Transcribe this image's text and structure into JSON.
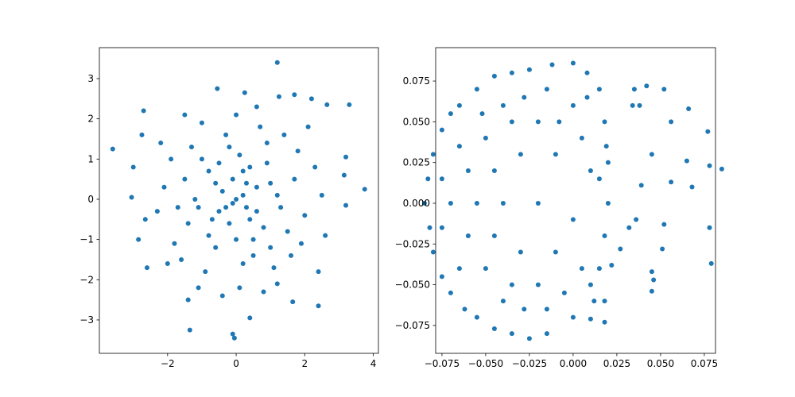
{
  "chart_data": [
    {
      "type": "scatter",
      "color": "#1f77b4",
      "x": [
        -3.6,
        3.75,
        1.2,
        -0.05,
        -1.35,
        -0.1,
        3.3,
        2.65,
        2.4,
        3.2,
        3.15,
        3.2,
        -2.7,
        -3.0,
        -3.05,
        -2.85,
        -2.6,
        0.4,
        1.65,
        2.2,
        1.25,
        -0.55,
        0.25,
        -2.75,
        -2.65,
        2.5,
        2.4,
        -1.4,
        0.0,
        0.3,
        -0.4,
        0.6,
        -0.8,
        0.9,
        -0.2,
        0.1,
        -1.1,
        1.2,
        0.5,
        -0.6,
        1.5,
        -1.5,
        0.2,
        -0.3,
        1.8,
        -1.8,
        0.7,
        -1.0,
        1.1,
        -0.9,
        2.0,
        -2.1,
        0.0,
        0.1,
        1.4,
        -1.3,
        1.6,
        -1.6,
        0.4,
        -0.5,
        0.8,
        -0.7,
        1.0,
        -1.2,
        0.3,
        -0.1,
        0.6,
        -0.3,
        0.2,
        -0.6,
        1.3,
        -1.4,
        0.9,
        -0.2,
        0.5,
        -0.8,
        2.3,
        -2.3,
        1.9,
        -1.9,
        0.0,
        1.0,
        -1.0,
        1.7,
        -1.7,
        2.1,
        -2.0,
        0.6,
        -0.4,
        1.2,
        -1.1,
        0.8,
        -1.5,
        1.7,
        -2.2,
        2.6,
        0.2,
        -0.1,
        0.4,
        -0.5
      ],
      "values": [
        1.25,
        0.25,
        3.4,
        -3.45,
        -3.25,
        -3.35,
        2.35,
        2.35,
        -2.65,
        1.05,
        0.6,
        -0.15,
        2.2,
        0.8,
        0.05,
        -1.0,
        -1.7,
        -2.95,
        -2.55,
        2.5,
        2.55,
        2.75,
        2.65,
        1.6,
        -0.5,
        0.1,
        -1.8,
        -2.5,
        0.0,
        0.4,
        0.2,
        -0.3,
        0.7,
        0.9,
        -0.6,
        1.1,
        -0.2,
        0.1,
        -1.0,
        -1.2,
        -0.8,
        0.5,
        -1.6,
        1.6,
        1.2,
        -1.1,
        1.8,
        1.9,
        -1.7,
        -1.8,
        -0.4,
        0.3,
        2.1,
        -2.2,
        1.6,
        1.3,
        -1.4,
        -1.5,
        0.8,
        0.9,
        -0.7,
        -0.5,
        0.4,
        0.0,
        -0.2,
        0.5,
        0.3,
        -0.2,
        0.7,
        0.4,
        -0.2,
        -0.6,
        1.4,
        1.3,
        -1.4,
        -0.9,
        0.8,
        -0.3,
        -1.1,
        1.0,
        -1.0,
        -1.2,
        1.0,
        0.5,
        -0.2,
        1.8,
        -1.6,
        2.3,
        -2.4,
        -2.1,
        -2.2,
        -2.3,
        2.1,
        2.6,
        1.4,
        -0.9,
        0.1,
        -0.1,
        -0.5,
        -0.3
      ],
      "xlim": [
        -3.99,
        4.15
      ],
      "ylim": [
        -3.83,
        3.77
      ],
      "xticks": [
        {
          "value": -2,
          "label": "−2"
        },
        0,
        2,
        4
      ],
      "yticks": [
        {
          "value": -3,
          "label": "−3"
        },
        {
          "value": -2,
          "label": "−2"
        },
        {
          "value": -1,
          "label": "−1"
        },
        0,
        1,
        2,
        3
      ]
    },
    {
      "type": "scatter",
      "color": "#1f77b4",
      "x": [
        0.035,
        0.042,
        0.052,
        0.066,
        0.056,
        0.077,
        0.045,
        0.065,
        0.085,
        0.078,
        0.056,
        0.068,
        0.039,
        0.036,
        0.032,
        0.052,
        0.078,
        0.079,
        0.051,
        0.045,
        0.046,
        0.045,
        0.027,
        0.022,
        0.018,
        0.018,
        0.01,
        0.034,
        0.038,
        0.02,
        -0.085,
        -0.083,
        -0.082,
        -0.08,
        -0.08,
        -0.075,
        -0.075,
        -0.07,
        -0.07,
        -0.065,
        -0.062,
        -0.055,
        -0.055,
        -0.045,
        -0.045,
        -0.035,
        -0.035,
        -0.025,
        -0.025,
        -0.012,
        -0.015,
        0.0,
        0.0,
        0.008,
        0.01,
        0.015,
        0.015,
        0.018,
        0.019,
        0.02,
        0.018,
        0.015,
        -0.07,
        -0.06,
        -0.06,
        -0.05,
        -0.05,
        -0.04,
        -0.04,
        -0.04,
        -0.03,
        -0.03,
        -0.02,
        -0.02,
        -0.02,
        -0.01,
        -0.01,
        0.0,
        0.0,
        0.005,
        0.005,
        0.01,
        -0.065,
        -0.065,
        -0.055,
        -0.045,
        -0.045,
        -0.035,
        -0.035,
        -0.028,
        -0.028,
        -0.015,
        -0.015,
        -0.008,
        -0.005,
        0.008,
        0.012,
        -0.075,
        -0.075,
        -0.052
      ],
      "values": [
        0.07,
        0.072,
        0.07,
        0.058,
        0.05,
        0.044,
        0.03,
        0.026,
        0.021,
        0.023,
        0.013,
        0.01,
        0.011,
        -0.01,
        -0.015,
        -0.013,
        -0.015,
        -0.037,
        -0.028,
        -0.042,
        -0.047,
        -0.054,
        -0.028,
        -0.038,
        -0.06,
        -0.073,
        -0.071,
        0.06,
        0.06,
        0.025,
        0.0,
        0.015,
        -0.015,
        0.03,
        -0.03,
        0.045,
        -0.045,
        0.055,
        -0.055,
        0.06,
        -0.065,
        0.07,
        -0.07,
        0.078,
        -0.077,
        0.08,
        -0.08,
        0.082,
        -0.083,
        0.085,
        -0.08,
        0.086,
        -0.07,
        0.08,
        -0.05,
        0.07,
        -0.04,
        0.05,
        0.035,
        0.0,
        -0.02,
        0.015,
        0.0,
        0.02,
        -0.02,
        0.04,
        -0.04,
        0.0,
        0.06,
        -0.06,
        0.03,
        -0.03,
        0.05,
        -0.05,
        0.0,
        0.03,
        -0.03,
        0.06,
        -0.01,
        0.04,
        -0.04,
        0.02,
        0.035,
        -0.04,
        0.0,
        0.02,
        -0.02,
        0.05,
        -0.05,
        0.065,
        -0.065,
        0.07,
        -0.065,
        0.05,
        -0.055,
        0.065,
        -0.06,
        0.015,
        -0.015,
        0.055
      ],
      "xlim": [
        -0.0786,
        0.0814
      ],
      "ylim": [
        -0.0921,
        0.0955
      ],
      "xticks": [
        {
          "value": -0.075,
          "label": "−0.075"
        },
        {
          "value": -0.05,
          "label": "−0.050"
        },
        {
          "value": -0.025,
          "label": "−0.025"
        },
        {
          "value": 0,
          "label": "0.000"
        },
        0.025,
        {
          "value": 0.05,
          "label": "0.050"
        },
        0.075
      ],
      "yticks": [
        {
          "value": -0.075,
          "label": "−0.075"
        },
        {
          "value": -0.05,
          "label": "−0.050"
        },
        {
          "value": -0.025,
          "label": "−0.025"
        },
        {
          "value": 0,
          "label": "0.000"
        },
        0.025,
        {
          "value": 0.05,
          "label": "0.050"
        },
        0.075
      ]
    }
  ]
}
